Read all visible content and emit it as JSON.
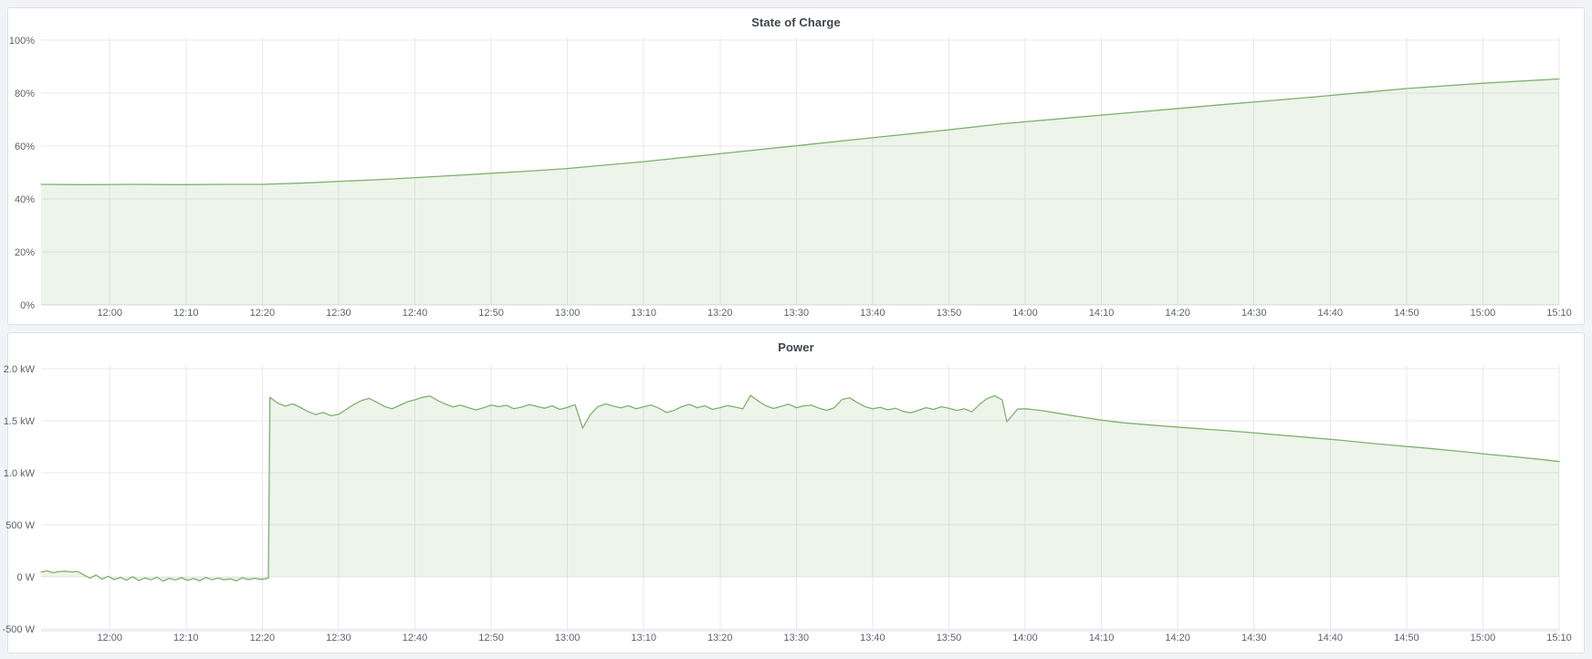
{
  "panels": [
    {
      "title": "State of Charge"
    },
    {
      "title": "Power"
    }
  ],
  "colors": {
    "series_green": "#7eb26d",
    "fill_opacity": 0.14,
    "grid": "#e8e9ed",
    "tick_text": "#5e626a",
    "panel_background": "#ffffff",
    "page_background": "#f1f3f6"
  },
  "chart_data": [
    {
      "type": "area",
      "title": "State of Charge",
      "ylabel": "",
      "xlabel": "",
      "unit": "percent",
      "legend": "hidden",
      "grid": "on",
      "x_axis_note": "time from ~11:51 to 15:10, t in minutes after 11:51",
      "x_range": [
        0,
        199
      ],
      "y_axis_range_labels": [
        0,
        100
      ],
      "x_ticks": [
        {
          "t": 9,
          "label": "12:00"
        },
        {
          "t": 19,
          "label": "12:10"
        },
        {
          "t": 29,
          "label": "12:20"
        },
        {
          "t": 39,
          "label": "12:30"
        },
        {
          "t": 49,
          "label": "12:40"
        },
        {
          "t": 59,
          "label": "12:50"
        },
        {
          "t": 69,
          "label": "13:00"
        },
        {
          "t": 79,
          "label": "13:10"
        },
        {
          "t": 89,
          "label": "13:20"
        },
        {
          "t": 99,
          "label": "13:30"
        },
        {
          "t": 109,
          "label": "13:40"
        },
        {
          "t": 119,
          "label": "13:50"
        },
        {
          "t": 129,
          "label": "14:00"
        },
        {
          "t": 139,
          "label": "14:10"
        },
        {
          "t": 149,
          "label": "14:20"
        },
        {
          "t": 159,
          "label": "14:30"
        },
        {
          "t": 169,
          "label": "14:40"
        },
        {
          "t": 179,
          "label": "14:50"
        },
        {
          "t": 189,
          "label": "15:00"
        },
        {
          "t": 199,
          "label": "15:10"
        }
      ],
      "y_ticks": [
        {
          "v": 0,
          "label": "0%"
        },
        {
          "v": 20,
          "label": "20%"
        },
        {
          "v": 40,
          "label": "40%"
        },
        {
          "v": 60,
          "label": "60%"
        },
        {
          "v": 80,
          "label": "80%"
        },
        {
          "v": 100,
          "label": "100%"
        }
      ],
      "series": [
        {
          "name": "State of Charge",
          "color": "#7eb26d",
          "points": [
            [
              0,
              45.5
            ],
            [
              6,
              45.4
            ],
            [
              12,
              45.5
            ],
            [
              18,
              45.4
            ],
            [
              24,
              45.5
            ],
            [
              29,
              45.5
            ],
            [
              35,
              46.1
            ],
            [
              45,
              47.4
            ],
            [
              55,
              49.0
            ],
            [
              65,
              50.7
            ],
            [
              69,
              51.5
            ],
            [
              79,
              54.1
            ],
            [
              89,
              57.1
            ],
            [
              99,
              60.1
            ],
            [
              109,
              63.1
            ],
            [
              119,
              66.1
            ],
            [
              126,
              68.4
            ],
            [
              136,
              70.9
            ],
            [
              146,
              73.4
            ],
            [
              156,
              75.9
            ],
            [
              166,
              78.3
            ],
            [
              179,
              81.7
            ],
            [
              189,
              83.7
            ],
            [
              199,
              85.3
            ]
          ]
        }
      ]
    },
    {
      "type": "area",
      "title": "Power",
      "ylabel": "",
      "xlabel": "",
      "unit": "watts",
      "legend": "hidden",
      "grid": "on",
      "x_axis_note": "time from ~11:51 to 15:10, t in minutes after 11:51",
      "x_range": [
        0,
        199
      ],
      "y_axis_range_labels": [
        -500,
        2000
      ],
      "x_ticks": [
        {
          "t": 9,
          "label": "12:00"
        },
        {
          "t": 19,
          "label": "12:10"
        },
        {
          "t": 29,
          "label": "12:20"
        },
        {
          "t": 39,
          "label": "12:30"
        },
        {
          "t": 49,
          "label": "12:40"
        },
        {
          "t": 59,
          "label": "12:50"
        },
        {
          "t": 69,
          "label": "13:00"
        },
        {
          "t": 79,
          "label": "13:10"
        },
        {
          "t": 89,
          "label": "13:20"
        },
        {
          "t": 99,
          "label": "13:30"
        },
        {
          "t": 109,
          "label": "13:40"
        },
        {
          "t": 119,
          "label": "13:50"
        },
        {
          "t": 129,
          "label": "14:00"
        },
        {
          "t": 139,
          "label": "14:10"
        },
        {
          "t": 149,
          "label": "14:20"
        },
        {
          "t": 159,
          "label": "14:30"
        },
        {
          "t": 169,
          "label": "14:40"
        },
        {
          "t": 179,
          "label": "14:50"
        },
        {
          "t": 189,
          "label": "15:00"
        },
        {
          "t": 199,
          "label": "15:10"
        }
      ],
      "y_ticks": [
        {
          "v": -500,
          "label": "-500 W"
        },
        {
          "v": 0,
          "label": "0 W"
        },
        {
          "v": 500,
          "label": "500 W"
        },
        {
          "v": 1000,
          "label": "1.0 kW"
        },
        {
          "v": 1500,
          "label": "1.5 kW"
        },
        {
          "v": 2000,
          "label": "2.0 kW"
        }
      ],
      "series": [
        {
          "name": "Power",
          "color": "#7eb26d",
          "points": [
            [
              0,
              45
            ],
            [
              0.8,
              58
            ],
            [
              1.6,
              40
            ],
            [
              2.4,
              52
            ],
            [
              3.2,
              55
            ],
            [
              4,
              48
            ],
            [
              4.8,
              52
            ],
            [
              5.6,
              20
            ],
            [
              6.4,
              -12
            ],
            [
              7.2,
              18
            ],
            [
              8,
              -22
            ],
            [
              8.8,
              6
            ],
            [
              9.6,
              -26
            ],
            [
              10.4,
              -6
            ],
            [
              11.2,
              -32
            ],
            [
              12,
              2
            ],
            [
              12.8,
              -36
            ],
            [
              13.6,
              -10
            ],
            [
              14.4,
              -28
            ],
            [
              15.2,
              -4
            ],
            [
              16,
              -40
            ],
            [
              16.8,
              -14
            ],
            [
              17.6,
              -30
            ],
            [
              18.4,
              -8
            ],
            [
              19.2,
              -34
            ],
            [
              20,
              -16
            ],
            [
              20.8,
              -36
            ],
            [
              21.6,
              -6
            ],
            [
              22.4,
              -28
            ],
            [
              23.2,
              -12
            ],
            [
              24,
              -28
            ],
            [
              24.8,
              -18
            ],
            [
              25.6,
              -38
            ],
            [
              26.4,
              -8
            ],
            [
              27.2,
              -26
            ],
            [
              28,
              -14
            ],
            [
              28.8,
              -24
            ],
            [
              29.4,
              -18
            ],
            [
              29.8,
              -12
            ],
            [
              30,
              1725
            ],
            [
              31,
              1670
            ],
            [
              32,
              1640
            ],
            [
              33,
              1662
            ],
            [
              34,
              1628
            ],
            [
              35,
              1588
            ],
            [
              36,
              1560
            ],
            [
              37,
              1580
            ],
            [
              38,
              1548
            ],
            [
              39,
              1562
            ],
            [
              40,
              1610
            ],
            [
              41,
              1656
            ],
            [
              42,
              1694
            ],
            [
              43,
              1716
            ],
            [
              44,
              1678
            ],
            [
              45,
              1638
            ],
            [
              46,
              1615
            ],
            [
              47,
              1648
            ],
            [
              48,
              1682
            ],
            [
              49,
              1702
            ],
            [
              50,
              1725
            ],
            [
              51,
              1738
            ],
            [
              52,
              1695
            ],
            [
              53,
              1660
            ],
            [
              54,
              1634
            ],
            [
              55,
              1650
            ],
            [
              56,
              1626
            ],
            [
              57,
              1604
            ],
            [
              58,
              1625
            ],
            [
              59,
              1652
            ],
            [
              60,
              1636
            ],
            [
              61,
              1648
            ],
            [
              62,
              1616
            ],
            [
              63,
              1632
            ],
            [
              64,
              1656
            ],
            [
              65,
              1638
            ],
            [
              66,
              1620
            ],
            [
              67,
              1644
            ],
            [
              68,
              1610
            ],
            [
              69,
              1628
            ],
            [
              70,
              1655
            ],
            [
              71,
              1430
            ],
            [
              72,
              1560
            ],
            [
              73,
              1635
            ],
            [
              74,
              1662
            ],
            [
              75,
              1640
            ],
            [
              76,
              1625
            ],
            [
              77,
              1645
            ],
            [
              78,
              1615
            ],
            [
              79,
              1635
            ],
            [
              80,
              1652
            ],
            [
              81,
              1620
            ],
            [
              82,
              1580
            ],
            [
              83,
              1600
            ],
            [
              84,
              1636
            ],
            [
              85,
              1658
            ],
            [
              86,
              1626
            ],
            [
              87,
              1644
            ],
            [
              88,
              1610
            ],
            [
              89,
              1626
            ],
            [
              90,
              1646
            ],
            [
              91,
              1632
            ],
            [
              92,
              1615
            ],
            [
              93,
              1745
            ],
            [
              94,
              1690
            ],
            [
              95,
              1645
            ],
            [
              96,
              1618
            ],
            [
              97,
              1638
            ],
            [
              98,
              1660
            ],
            [
              99,
              1626
            ],
            [
              100,
              1644
            ],
            [
              101,
              1650
            ],
            [
              102,
              1620
            ],
            [
              103,
              1600
            ],
            [
              104,
              1626
            ],
            [
              105,
              1705
            ],
            [
              106,
              1720
            ],
            [
              107,
              1676
            ],
            [
              108,
              1636
            ],
            [
              109,
              1615
            ],
            [
              110,
              1630
            ],
            [
              111,
              1605
            ],
            [
              112,
              1620
            ],
            [
              113,
              1590
            ],
            [
              114,
              1576
            ],
            [
              115,
              1600
            ],
            [
              116,
              1626
            ],
            [
              117,
              1610
            ],
            [
              118,
              1635
            ],
            [
              119,
              1620
            ],
            [
              120,
              1600
            ],
            [
              121,
              1615
            ],
            [
              122,
              1586
            ],
            [
              123,
              1655
            ],
            [
              124,
              1712
            ],
            [
              125,
              1740
            ],
            [
              126,
              1700
            ],
            [
              126.6,
              1490
            ],
            [
              127.4,
              1560
            ],
            [
              128,
              1612
            ],
            [
              129,
              1616
            ],
            [
              131,
              1600
            ],
            [
              133,
              1576
            ],
            [
              136,
              1540
            ],
            [
              139,
              1506
            ],
            [
              142,
              1480
            ],
            [
              145,
              1462
            ],
            [
              148,
              1445
            ],
            [
              151,
              1428
            ],
            [
              154,
              1412
            ],
            [
              158,
              1390
            ],
            [
              162,
              1365
            ],
            [
              166,
              1340
            ],
            [
              170,
              1316
            ],
            [
              174,
              1286
            ],
            [
              178,
              1260
            ],
            [
              182,
              1234
            ],
            [
              186,
              1206
            ],
            [
              190,
              1176
            ],
            [
              194,
              1148
            ],
            [
              197,
              1126
            ],
            [
              199,
              1108
            ]
          ]
        }
      ]
    }
  ]
}
